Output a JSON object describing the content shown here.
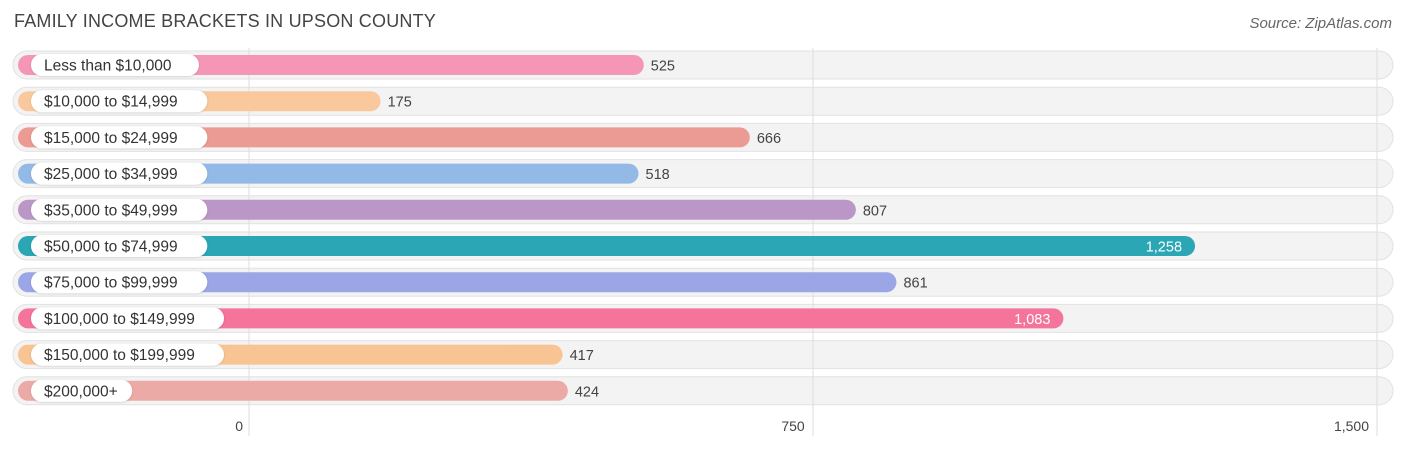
{
  "title": "FAMILY INCOME BRACKETS IN UPSON COUNTY",
  "source": "Source: ZipAtlas.com",
  "chart_data": {
    "type": "bar",
    "orientation": "horizontal",
    "title": "FAMILY INCOME BRACKETS IN UPSON COUNTY",
    "xlim": [
      0,
      1500
    ],
    "ticks": [
      0,
      750,
      1500
    ],
    "tick_labels": [
      "0",
      "750",
      "1,500"
    ],
    "grid": true,
    "categories": [
      "Less than $10,000",
      "$10,000 to $14,999",
      "$15,000 to $24,999",
      "$25,000 to $34,999",
      "$35,000 to $49,999",
      "$50,000 to $74,999",
      "$75,000 to $99,999",
      "$100,000 to $149,999",
      "$150,000 to $199,999",
      "$200,000+"
    ],
    "values": [
      525,
      175,
      666,
      518,
      807,
      1258,
      861,
      1083,
      417,
      424
    ],
    "value_labels": [
      "525",
      "175",
      "666",
      "518",
      "807",
      "1,258",
      "861",
      "1,083",
      "417",
      "424"
    ],
    "colors": [
      "#f596b6",
      "#f9c99d",
      "#ec9b94",
      "#93b9e6",
      "#bb97c7",
      "#2aa6b5",
      "#9ba6e6",
      "#f4749c",
      "#f9c493",
      "#ecaaa6"
    ],
    "label_inside": [
      false,
      false,
      false,
      false,
      false,
      true,
      false,
      true,
      false,
      false
    ]
  }
}
